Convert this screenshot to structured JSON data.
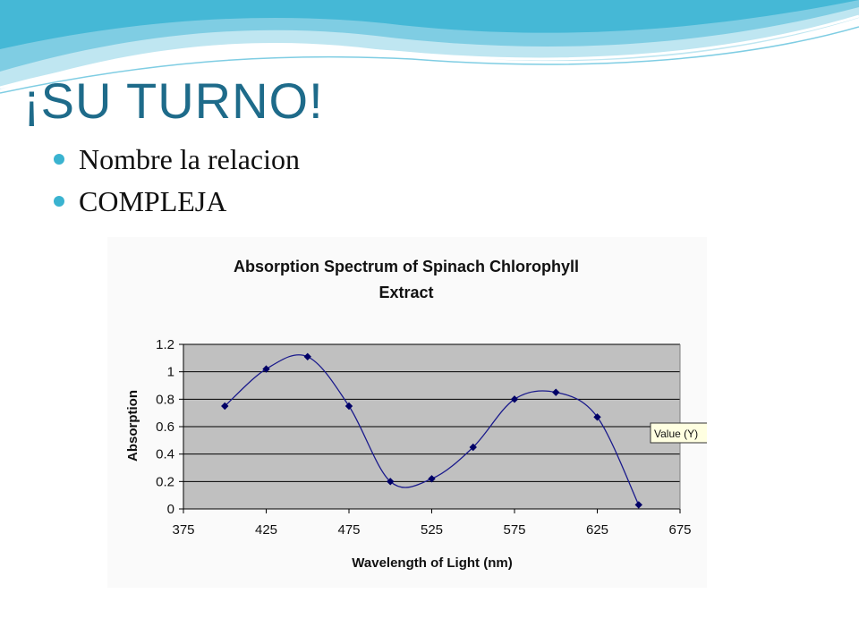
{
  "slide": {
    "title": "¡SU TURNO!",
    "bullets": [
      "Nombre la relacion",
      "COMPLEJA"
    ],
    "accent_color": "#3ab3d0",
    "title_color": "#1e6b8a"
  },
  "chart_data": {
    "type": "line",
    "title_lines": [
      "Absorption Spectrum of Spinach Chlorophyll",
      "Extract"
    ],
    "xlabel": "Wavelength of Light (nm)",
    "ylabel": "Absorption",
    "xlim": [
      375,
      675
    ],
    "ylim": [
      0,
      1.2
    ],
    "xticks": [
      375,
      425,
      475,
      525,
      575,
      625,
      675
    ],
    "yticks": [
      0,
      0.2,
      0.4,
      0.6,
      0.8,
      1,
      1.2
    ],
    "grid": true,
    "smooth": true,
    "plot_background": "#c0c0c0",
    "line_color": "#1a1a8c",
    "marker_color": "#000066",
    "series": [
      {
        "x": [
          400,
          425,
          450,
          475,
          500,
          525,
          550,
          575,
          600,
          625,
          650
        ],
        "y": [
          0.75,
          1.02,
          1.11,
          0.75,
          0.2,
          0.22,
          0.45,
          0.8,
          0.85,
          0.67,
          0.03
        ]
      }
    ],
    "tooltip": "Value (Y)"
  }
}
